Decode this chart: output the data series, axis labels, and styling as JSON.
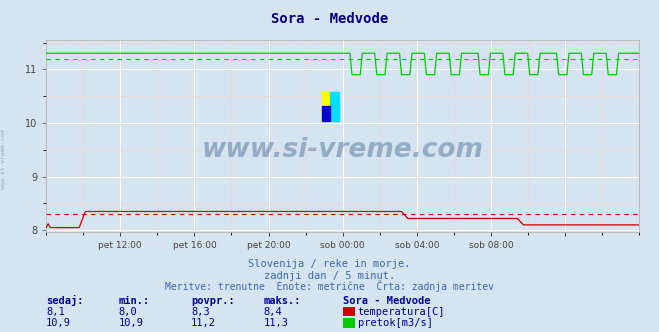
{
  "title": "Sora - Medvode",
  "title_color": "#000080",
  "bg_color": "#d4e4f0",
  "plot_bg_color": "#d4e4f0",
  "grid_color_major": "#ffffff",
  "grid_color_minor": "#ffcccc",
  "ylim": [
    7.96,
    11.55
  ],
  "yticks": [
    8,
    9,
    10,
    11
  ],
  "num_points": 288,
  "temp_min": 8.0,
  "temp_max": 8.4,
  "temp_povpr": 8.3,
  "temp_sedaj": 8.1,
  "pretok_min": 10.9,
  "pretok_max": 11.3,
  "pretok_povpr": 11.2,
  "pretok_sedaj": 10.9,
  "temp_color": "#cc0000",
  "pretok_color": "#00cc00",
  "watermark_text": "www.si-vreme.com",
  "watermark_color": "#6080a0",
  "subtitle1": "Slovenija / reke in morje.",
  "subtitle2": "zadnji dan / 5 minut.",
  "subtitle3": "Meritve: trenutne  Enote: metrične  Črta: zadnja meritev",
  "subtitle_color": "#4466aa",
  "table_header_color": "#000099",
  "table_color": "#000099",
  "legend_title": "Sora - Medvode",
  "x_tick_positions": [
    0.125,
    0.25,
    0.375,
    0.5,
    0.625,
    0.75,
    0.875
  ],
  "x_tick_labels": [
    "pet 12:00",
    "pet 16:00",
    "pet 20:00",
    "sob 00:00",
    "sob 04:00",
    "sob 08:00",
    ""
  ]
}
